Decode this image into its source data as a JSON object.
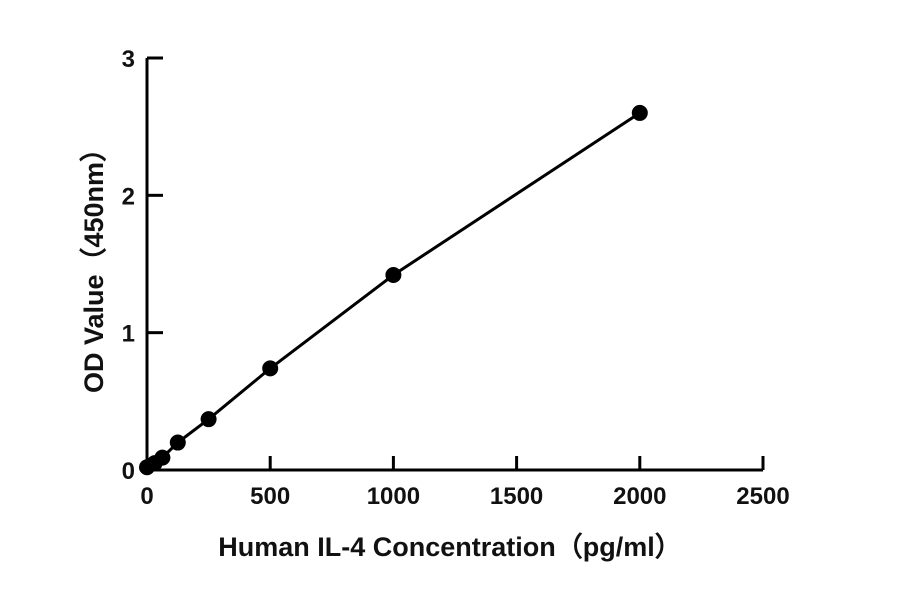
{
  "chart_data": {
    "type": "scatter",
    "title": "",
    "xlabel": "Human IL-4  Concentration（pg/ml）",
    "ylabel": "OD Value（450nm）",
    "xlim": [
      0,
      2500
    ],
    "ylim": [
      0,
      3
    ],
    "x_ticks": [
      0,
      500,
      1000,
      1500,
      2000,
      2500
    ],
    "x_tick_labels": [
      "0",
      "500",
      "1000",
      "1500",
      "2000",
      "2500"
    ],
    "y_ticks": [
      0,
      1,
      2,
      3
    ],
    "y_tick_labels": [
      "0",
      "1",
      "2",
      "3"
    ],
    "grid": false,
    "legend": "none",
    "series": [
      {
        "points": [
          {
            "x": 0,
            "y": 0.02
          },
          {
            "x": 31.25,
            "y": 0.05
          },
          {
            "x": 62.5,
            "y": 0.09
          },
          {
            "x": 125,
            "y": 0.2
          },
          {
            "x": 250,
            "y": 0.37
          },
          {
            "x": 500,
            "y": 0.74
          },
          {
            "x": 1000,
            "y": 1.42
          },
          {
            "x": 2000,
            "y": 2.6
          }
        ],
        "fit_line": true,
        "color": "#000000"
      }
    ]
  }
}
